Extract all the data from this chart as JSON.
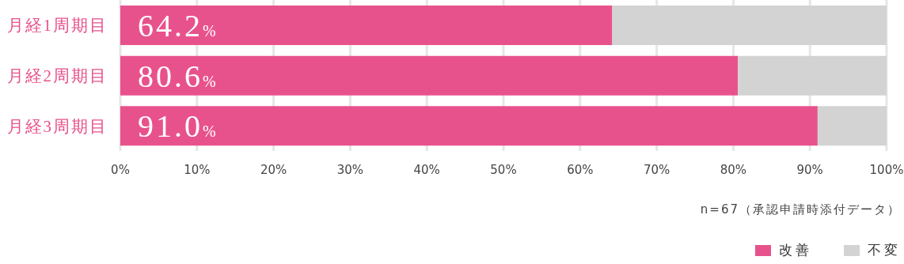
{
  "chart_data": {
    "type": "bar",
    "orientation": "horizontal",
    "stacked": true,
    "categories": [
      "月経1周期目",
      "月経2周期目",
      "月経3周期目"
    ],
    "series": [
      {
        "name": "改善",
        "color": "#e8528c",
        "values": [
          64.2,
          80.6,
          91.0
        ],
        "value_labels": [
          "64.2%",
          "80.6%",
          "91.0%"
        ]
      },
      {
        "name": "不変",
        "color": "#d3d3d3",
        "values": [
          35.8,
          19.4,
          9.0
        ]
      }
    ],
    "xlim": [
      0,
      100
    ],
    "xticks": [
      {
        "value": 0,
        "label": "0%"
      },
      {
        "value": 10,
        "label": "10%"
      },
      {
        "value": 20,
        "label": "20%"
      },
      {
        "value": 30,
        "label": "30%"
      },
      {
        "value": 40,
        "label": "40%"
      },
      {
        "value": 50,
        "label": "50%"
      },
      {
        "value": 60,
        "label": "60%"
      },
      {
        "value": 70,
        "label": "70%"
      },
      {
        "value": 80,
        "label": "80%"
      },
      {
        "value": 90,
        "label": "90%"
      },
      {
        "value": 100,
        "label": "100%"
      }
    ],
    "grid": "x",
    "legend": "bottom right",
    "annotations": [
      "n=67（承認申請時添付データ）"
    ]
  }
}
